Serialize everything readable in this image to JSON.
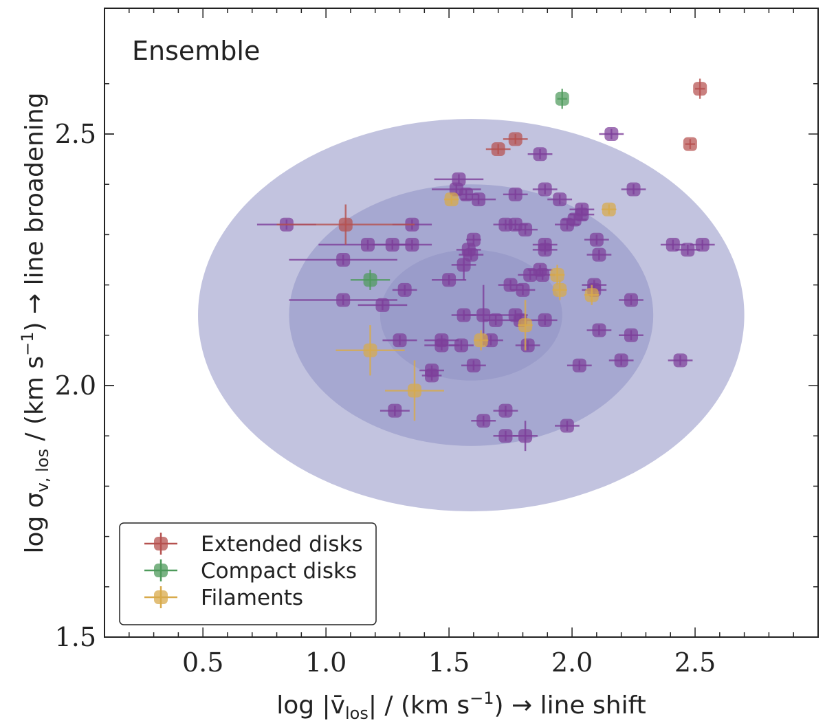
{
  "chart_data": {
    "type": "scatter",
    "panel_label": "Ensemble",
    "xlabel": {
      "prefix": "log |",
      "var": "v̄",
      "sub": "los",
      "mid": "| / (km s",
      "sup": "−1",
      "suffix": ")  → line shift"
    },
    "ylabel": {
      "prefix": "log σ",
      "sub": "v, los",
      "mid": " / (km s",
      "sup": "−1",
      "suffix": ") → line broadening"
    },
    "xlim": [
      0.1,
      3.0
    ],
    "ylim": [
      1.5,
      2.75
    ],
    "xticks": [
      0.5,
      1.0,
      1.5,
      2.0,
      2.5
    ],
    "xtick_labels": [
      "0.5",
      "1.0",
      "1.5",
      "2.0",
      "2.5"
    ],
    "yticks": [
      1.5,
      2.0,
      2.5
    ],
    "ytick_labels": [
      "1.5",
      "2.0",
      "2.5"
    ],
    "grid": false,
    "legend_position": "lower-left",
    "ellipses": {
      "center": [
        1.59,
        2.14
      ],
      "half_widths": [
        [
          0.37,
          0.13
        ],
        [
          0.74,
          0.26
        ],
        [
          1.11,
          0.39
        ]
      ],
      "color": "#8f92c4"
    },
    "series": [
      {
        "name": "",
        "color": "#7d3f9a",
        "points": [
          [
            0.84,
            2.32,
            0.12,
            0.01
          ],
          [
            1.07,
            2.25,
            0.22,
            0.01
          ],
          [
            1.07,
            2.17,
            0.22,
            0.01
          ],
          [
            1.17,
            2.28,
            0.2,
            0.01
          ],
          [
            1.27,
            2.28,
            0.08,
            0.01
          ],
          [
            1.35,
            2.32,
            0.08,
            0.01
          ],
          [
            1.35,
            2.28,
            0.08,
            0.01
          ],
          [
            1.23,
            2.16,
            0.1,
            0.01
          ],
          [
            1.32,
            2.19,
            0.05,
            0.01
          ],
          [
            1.3,
            2.09,
            0.07,
            0.01
          ],
          [
            1.28,
            1.95,
            0.06,
            0.01
          ],
          [
            1.43,
            2.03,
            0.05,
            0.01
          ],
          [
            1.43,
            2.02,
            0.04,
            0.01
          ],
          [
            1.47,
            2.09,
            0.07,
            0.01
          ],
          [
            1.47,
            2.08,
            0.07,
            0.01
          ],
          [
            1.5,
            2.21,
            0.07,
            0.01
          ],
          [
            1.54,
            2.41,
            0.1,
            0.01
          ],
          [
            1.53,
            2.39,
            0.1,
            0.01
          ],
          [
            1.57,
            2.38,
            0.05,
            0.01
          ],
          [
            1.62,
            2.37,
            0.07,
            0.01
          ],
          [
            1.58,
            2.27,
            0.05,
            0.01
          ],
          [
            1.59,
            2.26,
            0.05,
            0.01
          ],
          [
            1.6,
            2.29,
            0.03,
            0.01
          ],
          [
            1.56,
            2.24,
            0.05,
            0.03
          ],
          [
            1.56,
            2.14,
            0.05,
            0.01
          ],
          [
            1.55,
            2.08,
            0.05,
            0.01
          ],
          [
            1.6,
            2.04,
            0.05,
            0.01
          ],
          [
            1.64,
            2.14,
            0.08,
            0.06
          ],
          [
            1.67,
            2.09,
            0.05,
            0.01
          ],
          [
            1.69,
            2.13,
            0.05,
            0.01
          ],
          [
            1.73,
            2.32,
            0.05,
            0.01
          ],
          [
            1.77,
            2.38,
            0.05,
            0.01
          ],
          [
            1.77,
            2.32,
            0.05,
            0.01
          ],
          [
            1.81,
            2.31,
            0.05,
            0.01
          ],
          [
            1.75,
            2.2,
            0.05,
            0.01
          ],
          [
            1.8,
            2.19,
            0.05,
            0.01
          ],
          [
            1.79,
            2.13,
            0.05,
            0.01
          ],
          [
            1.82,
            2.08,
            0.05,
            0.01
          ],
          [
            1.77,
            2.14,
            0.05,
            0.01
          ],
          [
            1.83,
            2.22,
            0.05,
            0.01
          ],
          [
            1.87,
            2.23,
            0.05,
            0.01
          ],
          [
            1.89,
            2.27,
            0.05,
            0.01
          ],
          [
            1.89,
            2.28,
            0.05,
            0.01
          ],
          [
            1.88,
            2.22,
            0.05,
            0.01
          ],
          [
            1.89,
            2.13,
            0.05,
            0.01
          ],
          [
            1.87,
            2.46,
            0.05,
            0.01
          ],
          [
            1.89,
            2.39,
            0.05,
            0.01
          ],
          [
            1.95,
            2.37,
            0.05,
            0.01
          ],
          [
            1.98,
            2.32,
            0.05,
            0.01
          ],
          [
            2.01,
            2.33,
            0.05,
            0.01
          ],
          [
            2.04,
            2.35,
            0.05,
            0.01
          ],
          [
            2.04,
            2.34,
            0.05,
            0.01
          ],
          [
            2.1,
            2.29,
            0.05,
            0.01
          ],
          [
            2.11,
            2.26,
            0.05,
            0.01
          ],
          [
            2.09,
            2.2,
            0.05,
            0.01
          ],
          [
            2.09,
            2.19,
            0.05,
            0.01
          ],
          [
            2.11,
            2.11,
            0.05,
            0.01
          ],
          [
            2.03,
            2.04,
            0.05,
            0.01
          ],
          [
            2.16,
            2.5,
            0.05,
            0.01
          ],
          [
            2.25,
            2.39,
            0.05,
            0.01
          ],
          [
            2.24,
            2.17,
            0.05,
            0.01
          ],
          [
            2.24,
            2.1,
            0.05,
            0.01
          ],
          [
            2.2,
            2.05,
            0.05,
            0.01
          ],
          [
            2.41,
            2.28,
            0.05,
            0.01
          ],
          [
            2.47,
            2.27,
            0.05,
            0.01
          ],
          [
            2.53,
            2.28,
            0.05,
            0.01
          ],
          [
            2.44,
            2.05,
            0.05,
            0.01
          ],
          [
            1.64,
            1.93,
            0.05,
            0.01
          ],
          [
            1.73,
            1.95,
            0.05,
            0.01
          ],
          [
            1.73,
            1.9,
            0.05,
            0.01
          ],
          [
            1.81,
            1.9,
            0.05,
            0.03
          ],
          [
            1.98,
            1.92,
            0.05,
            0.01
          ]
        ]
      },
      {
        "name": "Extended disks",
        "color": "#b5514f",
        "points": [
          [
            1.08,
            2.32,
            0.28,
            0.04
          ],
          [
            1.7,
            2.47,
            0.05,
            0.01
          ],
          [
            1.77,
            2.49,
            0.05,
            0.01
          ],
          [
            2.48,
            2.48,
            0.02,
            0.01
          ],
          [
            2.52,
            2.59,
            0.02,
            0.02
          ]
        ]
      },
      {
        "name": "Compact disks",
        "color": "#4e9a5b",
        "points": [
          [
            1.18,
            2.21,
            0.08,
            0.02
          ],
          [
            1.96,
            2.57,
            0.02,
            0.02
          ]
        ]
      },
      {
        "name": "Filaments",
        "color": "#d8aa4b",
        "points": [
          [
            1.51,
            2.37,
            0.03,
            0.01
          ],
          [
            2.15,
            2.35,
            0.03,
            0.01
          ],
          [
            1.94,
            2.22,
            0.03,
            0.02
          ],
          [
            1.95,
            2.19,
            0.03,
            0.02
          ],
          [
            2.08,
            2.18,
            0.03,
            0.02
          ],
          [
            1.81,
            2.12,
            0.03,
            0.05
          ],
          [
            1.63,
            2.09,
            0.03,
            0.02
          ],
          [
            1.18,
            2.07,
            0.14,
            0.05
          ],
          [
            1.36,
            1.99,
            0.12,
            0.06
          ]
        ]
      }
    ]
  }
}
